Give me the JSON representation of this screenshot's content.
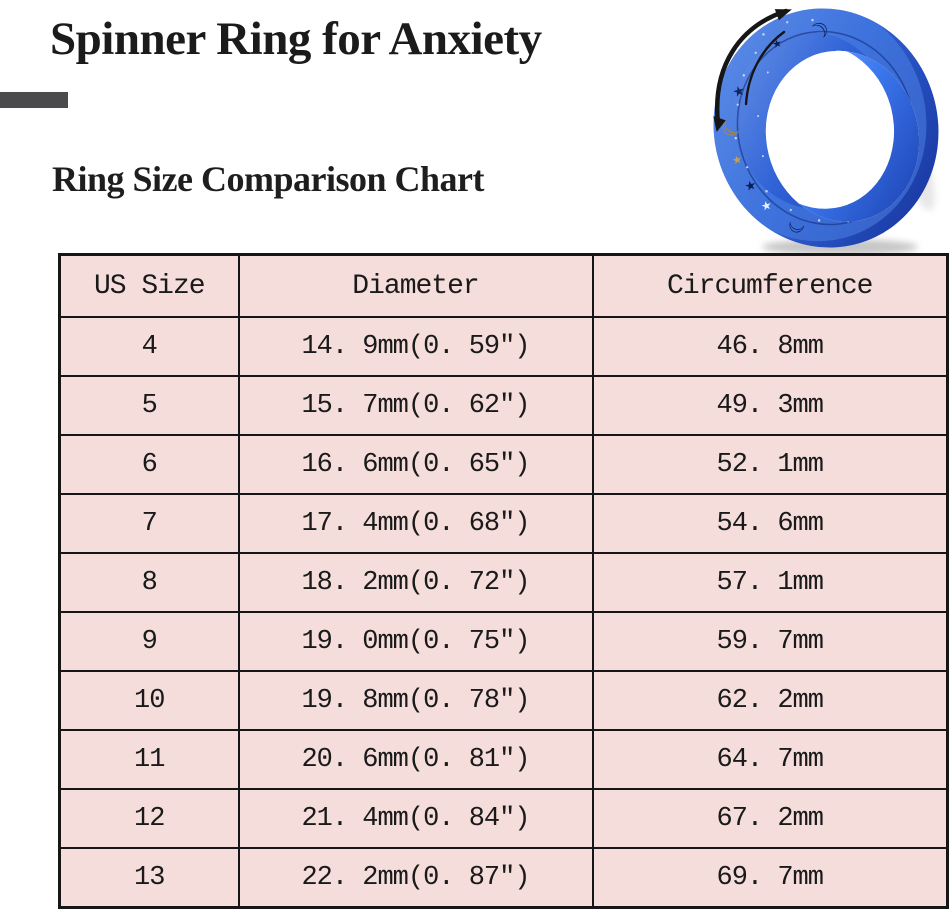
{
  "header": {
    "title": "Spinner Ring for Anxiety",
    "subtitle": "Ring Size Comparison Chart"
  },
  "decor": {
    "accent_bar_color": "#4b4b4d"
  },
  "ring_graphic": {
    "description": "blue sparkle spinner ring with moon and star cutouts and rotation arrows",
    "band_color": "#2f62d6",
    "band_dark_color": "#142f96",
    "band_highlight_color": "#7aa2ec",
    "inner_wall_color": "#3c79ef",
    "moon_accent_color": "#b8862f",
    "arrow_color": "#161616",
    "motifs": [
      "moon",
      "star"
    ]
  },
  "chart_data": {
    "type": "table",
    "title": "Ring Size Comparison Chart",
    "columns": [
      "US Size",
      "Diameter",
      "Circumference"
    ],
    "rows": [
      [
        "4",
        "14. 9mm(0. 59″)",
        "46. 8mm"
      ],
      [
        "5",
        "15. 7mm(0. 62″)",
        "49. 3mm"
      ],
      [
        "6",
        "16. 6mm(0. 65″)",
        "52. 1mm"
      ],
      [
        "7",
        "17. 4mm(0. 68″)",
        "54. 6mm"
      ],
      [
        "8",
        "18. 2mm(0. 72″)",
        "57. 1mm"
      ],
      [
        "9",
        "19. 0mm(0. 75″)",
        "59. 7mm"
      ],
      [
        "10",
        "19. 8mm(0. 78″)",
        "62. 2mm"
      ],
      [
        "11",
        "20. 6mm(0. 81″)",
        "64. 7mm"
      ],
      [
        "12",
        "21. 4mm(0. 84″)",
        "67. 2mm"
      ],
      [
        "13",
        "22. 2mm(0. 87″)",
        "69. 7mm"
      ]
    ],
    "styles": {
      "table_bg": "#f4ddda",
      "border_color": "#161616",
      "text_color": "#1a1a1a"
    }
  }
}
